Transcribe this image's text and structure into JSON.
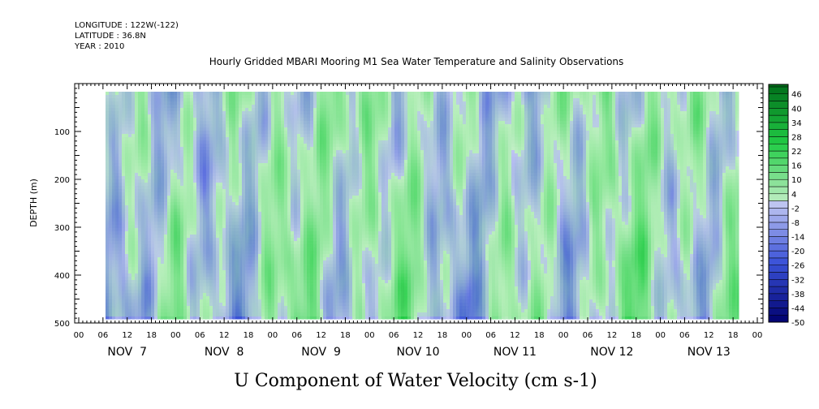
{
  "header": {
    "longitude": "LONGITUDE : 122W(-122)",
    "latitude": "LATITUDE : 36.8N",
    "year": "YEAR : 2010"
  },
  "chart_data": {
    "type": "heatmap",
    "title": "Hourly Gridded MBARI Mooring M1 Sea Water Temperature and Salinity Observations",
    "xlabel": "U Component of Water Velocity (cm s-1)",
    "ylabel": "DEPTH (m)",
    "y_ticks": [
      100,
      200,
      300,
      400,
      500
    ],
    "ylim": [
      0,
      500
    ],
    "y_inverted": true,
    "hour_ticks": [
      "00",
      "06",
      "12",
      "18",
      "00",
      "06",
      "12",
      "18",
      "00",
      "06",
      "12",
      "18",
      "00",
      "06",
      "12",
      "18",
      "00",
      "06",
      "12",
      "18",
      "00",
      "06",
      "12",
      "18",
      "00",
      "06",
      "12",
      "18",
      "00"
    ],
    "day_labels": [
      "NOV  7",
      "NOV  8",
      "NOV  9",
      "NOV 10",
      "NOV 11",
      "NOV 12",
      "NOV 13"
    ],
    "colorbar": {
      "labels": [
        "46",
        "40",
        "34",
        "28",
        "22",
        "16",
        "10",
        "4",
        "-2",
        "-8",
        "-14",
        "-20",
        "-26",
        "-32",
        "-38",
        "-44",
        "-50"
      ],
      "min": -50,
      "max": 50,
      "step": 3
    },
    "colors": {
      "neg_strong": "#00006e",
      "neg_mid": "#3a52d8",
      "neg_light": "#c0c6f2",
      "pos_light": "#c2eec6",
      "pos_mid": "#22cc46",
      "pos_strong": "#006e1a"
    }
  }
}
